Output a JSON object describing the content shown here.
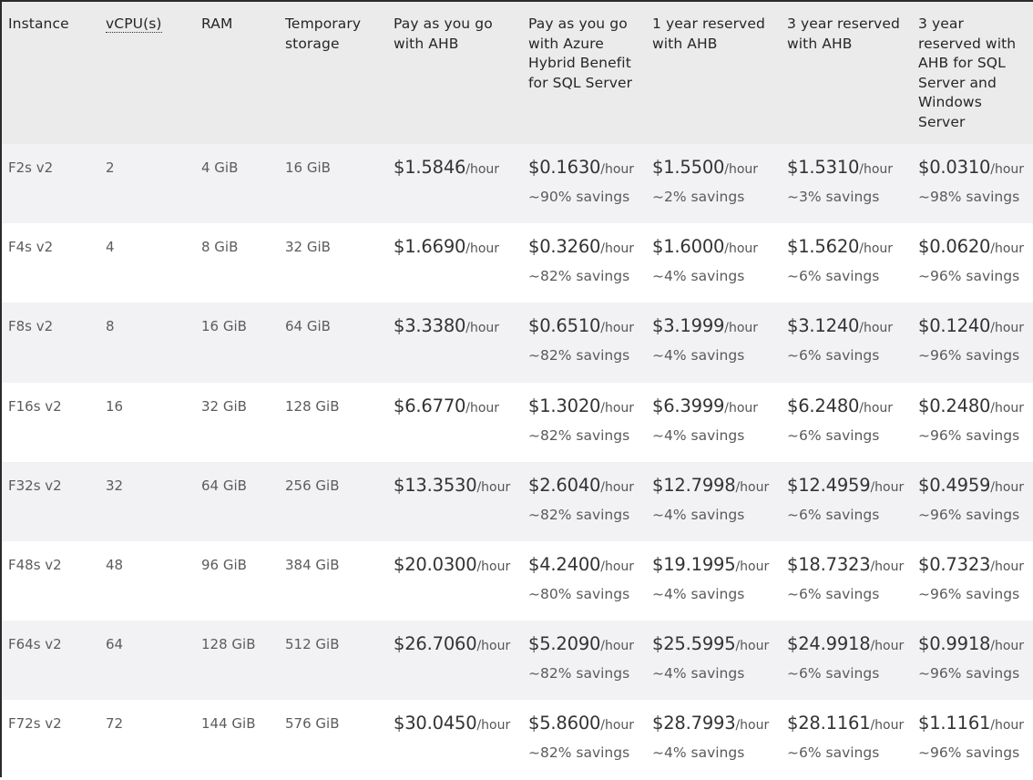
{
  "table": {
    "headers": [
      "Instance",
      "vCPU(s)",
      "RAM",
      "Temporary storage",
      "Pay as you go with AHB",
      "Pay as you go with Azure Hybrid Benefit for SQL Server",
      "1 year reserved with AHB",
      "3 year reserved with AHB",
      "3 year reserved with AHB for SQL Server and Windows Server"
    ],
    "unit": "/hour",
    "rows": [
      {
        "instance": "F2s v2",
        "vcpu": "2",
        "ram": "4 GiB",
        "storage": "16 GiB",
        "payg": "$1.5846",
        "payg_sql": "$0.1630",
        "payg_sql_savings": "~90% savings",
        "r1": "$1.5500",
        "r1_savings": "~2% savings",
        "r3": "$1.5310",
        "r3_savings": "~3% savings",
        "r3_sql": "$0.0310",
        "r3_sql_savings": "~98% savings"
      },
      {
        "instance": "F4s v2",
        "vcpu": "4",
        "ram": "8 GiB",
        "storage": "32 GiB",
        "payg": "$1.6690",
        "payg_sql": "$0.3260",
        "payg_sql_savings": "~82% savings",
        "r1": "$1.6000",
        "r1_savings": "~4% savings",
        "r3": "$1.5620",
        "r3_savings": "~6% savings",
        "r3_sql": "$0.0620",
        "r3_sql_savings": "~96% savings"
      },
      {
        "instance": "F8s v2",
        "vcpu": "8",
        "ram": "16 GiB",
        "storage": "64 GiB",
        "payg": "$3.3380",
        "payg_sql": "$0.6510",
        "payg_sql_savings": "~82% savings",
        "r1": "$3.1999",
        "r1_savings": "~4% savings",
        "r3": "$3.1240",
        "r3_savings": "~6% savings",
        "r3_sql": "$0.1240",
        "r3_sql_savings": "~96% savings"
      },
      {
        "instance": "F16s v2",
        "vcpu": "16",
        "ram": "32 GiB",
        "storage": "128 GiB",
        "payg": "$6.6770",
        "payg_sql": "$1.3020",
        "payg_sql_savings": "~82% savings",
        "r1": "$6.3999",
        "r1_savings": "~4% savings",
        "r3": "$6.2480",
        "r3_savings": "~6% savings",
        "r3_sql": "$0.2480",
        "r3_sql_savings": "~96% savings"
      },
      {
        "instance": "F32s v2",
        "vcpu": "32",
        "ram": "64 GiB",
        "storage": "256 GiB",
        "payg": "$13.3530",
        "payg_sql": "$2.6040",
        "payg_sql_savings": "~82% savings",
        "r1": "$12.7998",
        "r1_savings": "~4% savings",
        "r3": "$12.4959",
        "r3_savings": "~6% savings",
        "r3_sql": "$0.4959",
        "r3_sql_savings": "~96% savings"
      },
      {
        "instance": "F48s v2",
        "vcpu": "48",
        "ram": "96 GiB",
        "storage": "384 GiB",
        "payg": "$20.0300",
        "payg_sql": "$4.2400",
        "payg_sql_savings": "~80% savings",
        "r1": "$19.1995",
        "r1_savings": "~4% savings",
        "r3": "$18.7323",
        "r3_savings": "~6% savings",
        "r3_sql": "$0.7323",
        "r3_sql_savings": "~96% savings"
      },
      {
        "instance": "F64s v2",
        "vcpu": "64",
        "ram": "128 GiB",
        "storage": "512 GiB",
        "payg": "$26.7060",
        "payg_sql": "$5.2090",
        "payg_sql_savings": "~82% savings",
        "r1": "$25.5995",
        "r1_savings": "~4% savings",
        "r3": "$24.9918",
        "r3_savings": "~6% savings",
        "r3_sql": "$0.9918",
        "r3_sql_savings": "~96% savings"
      },
      {
        "instance": "F72s v2",
        "vcpu": "72",
        "ram": "144 GiB",
        "storage": "576 GiB",
        "payg": "$30.0450",
        "payg_sql": "$5.8600",
        "payg_sql_savings": "~82% savings",
        "r1": "$28.7993",
        "r1_savings": "~4% savings",
        "r3": "$28.1161",
        "r3_savings": "~6% savings",
        "r3_sql": "$1.1161",
        "r3_sql_savings": "~96% savings"
      }
    ]
  },
  "colors": {
    "header_bg": "#ebebeb",
    "row_alt_bg": "#f2f2f4",
    "row_bg": "#ffffff",
    "frame_border": "#2b2b2b"
  }
}
